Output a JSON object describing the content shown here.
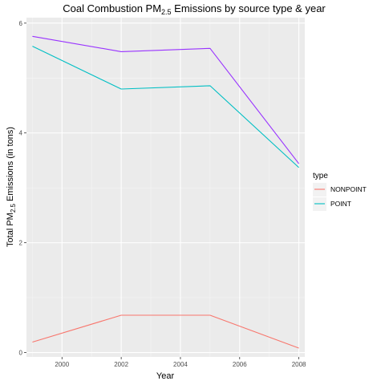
{
  "chart_data": {
    "type": "line",
    "title": {
      "prefix": "Coal Combustion PM",
      "subscript": "2.5",
      "suffix": " Emissions by source type & year"
    },
    "xlabel": "Year",
    "ylabel": {
      "prefix": "Total PM",
      "subscript": "2.5",
      "suffix": " Emissions (in tons)"
    },
    "x": [
      1999,
      2002,
      2005,
      2008
    ],
    "xlim": [
      1998.8,
      2008.2
    ],
    "ylim": [
      -0.08,
      6.1
    ],
    "xticks": [
      2000,
      2002,
      2004,
      2006,
      2008
    ],
    "yticks": [
      0,
      2,
      4,
      6
    ],
    "grid": true,
    "legend": {
      "title": "type",
      "position": "right"
    },
    "series": [
      {
        "name": "NONPOINT",
        "values": [
          0.19,
          0.68,
          0.68,
          0.08
        ],
        "color": "#F8766D",
        "in_legend": true
      },
      {
        "name": "POINT",
        "values": [
          5.58,
          4.8,
          4.86,
          3.37
        ],
        "color": "#00BFC4",
        "in_legend": true
      },
      {
        "name": "",
        "values": [
          5.76,
          5.48,
          5.54,
          3.44
        ],
        "color": "#9933FF",
        "in_legend": false
      }
    ]
  }
}
